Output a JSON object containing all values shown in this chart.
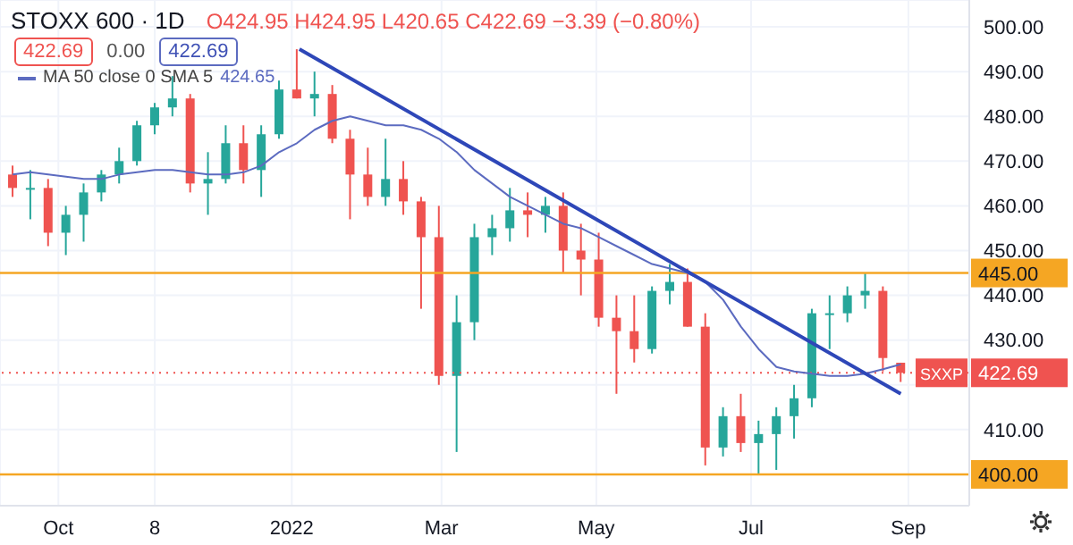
{
  "chart_data": {
    "type": "candlestick",
    "title": "STOXX 600 · 1D",
    "annotations": [
      "422.69",
      "0.00",
      "422.69",
      "424.65",
      "O424.95 H424.95 L420.65 C422.69 −3.39 (−0.80%)"
    ],
    "x": [
      "2021-09-13",
      "2021-09-20",
      "2021-09-27",
      "2021-10-04",
      "2021-10-11",
      "2021-10-18",
      "2021-10-25",
      "2021-11-01",
      "2021-11-08",
      "2021-11-15",
      "2021-11-22",
      "2021-11-29",
      "2021-12-06",
      "2021-12-13",
      "2021-12-20",
      "2021-12-27",
      "2022-01-03",
      "2022-01-10",
      "2022-01-17",
      "2022-01-24",
      "2022-01-31",
      "2022-02-07",
      "2022-02-14",
      "2022-02-21",
      "2022-02-28",
      "2022-03-07",
      "2022-03-14",
      "2022-03-21",
      "2022-03-28",
      "2022-04-04",
      "2022-04-11",
      "2022-04-18",
      "2022-04-25",
      "2022-05-02",
      "2022-05-09",
      "2022-05-16",
      "2022-05-23",
      "2022-05-30",
      "2022-06-06",
      "2022-06-13",
      "2022-06-20",
      "2022-06-27",
      "2022-07-04",
      "2022-07-11",
      "2022-07-18",
      "2022-07-25",
      "2022-08-01",
      "2022-08-08",
      "2022-08-15",
      "2022-08-22",
      "2022-08-29"
    ],
    "ohlc": [
      [
        467,
        469,
        462,
        464
      ],
      [
        464,
        468,
        457,
        464
      ],
      [
        464,
        466,
        451,
        454
      ],
      [
        454,
        460,
        449,
        458
      ],
      [
        458,
        465,
        452,
        463
      ],
      [
        463,
        468,
        461,
        467
      ],
      [
        467,
        473,
        465,
        470
      ],
      [
        470,
        479,
        469,
        478
      ],
      [
        478,
        483,
        476,
        482
      ],
      [
        482,
        489,
        480,
        484
      ],
      [
        484,
        485,
        463,
        465
      ],
      [
        465,
        472,
        458,
        466
      ],
      [
        466,
        478,
        465,
        474
      ],
      [
        474,
        478,
        465,
        468
      ],
      [
        468,
        478,
        462,
        476
      ],
      [
        476,
        488,
        475,
        486
      ],
      [
        486,
        495,
        484,
        484
      ],
      [
        484,
        490,
        480,
        485
      ],
      [
        485,
        487,
        474,
        475
      ],
      [
        475,
        477,
        457,
        467
      ],
      [
        467,
        473,
        460,
        462
      ],
      [
        462,
        475,
        460,
        466
      ],
      [
        466,
        470,
        458,
        461
      ],
      [
        461,
        462,
        437,
        453
      ],
      [
        453,
        460,
        420,
        422
      ],
      [
        422,
        440,
        405,
        434
      ],
      [
        434,
        456,
        430,
        453
      ],
      [
        453,
        458,
        449,
        455
      ],
      [
        455,
        464,
        452,
        459
      ],
      [
        459,
        463,
        453,
        458
      ],
      [
        458,
        462,
        454,
        460
      ],
      [
        460,
        463,
        445,
        450
      ],
      [
        450,
        456,
        440,
        448
      ],
      [
        448,
        454,
        433,
        435
      ],
      [
        435,
        440,
        418,
        432
      ],
      [
        432,
        440,
        425,
        428
      ],
      [
        428,
        442,
        427,
        441
      ],
      [
        441,
        447,
        438,
        443
      ],
      [
        443,
        446,
        433,
        433
      ],
      [
        433,
        436,
        402,
        406
      ],
      [
        406,
        415,
        404,
        413
      ],
      [
        413,
        418,
        405,
        407
      ],
      [
        407,
        412,
        400,
        409
      ],
      [
        409,
        415,
        401,
        413
      ],
      [
        413,
        420,
        408,
        417
      ],
      [
        417,
        437,
        415,
        436
      ],
      [
        436,
        440,
        428,
        436
      ],
      [
        436,
        442,
        434,
        440
      ],
      [
        440,
        445,
        437,
        441
      ],
      [
        441,
        442,
        423,
        426
      ],
      [
        424.95,
        424.95,
        420.65,
        422.69
      ]
    ],
    "series": [
      {
        "type": "line",
        "name": "MA 50 close 0 SMA 5",
        "color": "#5c6bc0",
        "values": [
          467,
          467.5,
          467,
          466.5,
          466,
          466,
          467,
          467.5,
          468,
          468,
          467.5,
          467,
          467,
          467.5,
          469,
          472,
          474,
          477,
          479,
          480,
          479,
          478,
          478,
          477,
          475,
          472,
          468,
          465,
          462,
          460,
          458,
          456,
          455,
          453,
          451,
          449,
          447,
          446,
          445,
          443,
          439,
          433,
          428,
          424,
          423,
          422.5,
          422,
          422,
          422.5,
          423.5,
          424.6
        ]
      },
      {
        "type": "line",
        "color": "#2e47b8",
        "x": [
          "2022-01-04",
          "2022-08-29"
        ],
        "values": [
          495,
          418
        ]
      }
    ],
    "ylim": [
      393,
      506
    ],
    "yticks": [
      {
        "value": 400,
        "label": null
      },
      {
        "value": 410,
        "label": "410.00"
      },
      {
        "value": 420,
        "label": null
      },
      {
        "value": 430,
        "label": "430.00"
      },
      {
        "value": 440,
        "label": "440.00"
      },
      {
        "value": 450,
        "label": "450.00"
      },
      {
        "value": 460,
        "label": "460.00"
      },
      {
        "value": 470,
        "label": "470.00"
      },
      {
        "value": 480,
        "label": "480.00"
      },
      {
        "value": 490,
        "label": "490.00"
      },
      {
        "value": 500,
        "label": "500.00"
      }
    ],
    "xlim": [
      "2021-09-08",
      "2022-09-25"
    ],
    "xticks": [
      {
        "value": "2021-10-01",
        "label": "Oct"
      },
      {
        "value": "2021-11-08",
        "label": "8"
      },
      {
        "value": "2022-01-01",
        "label": "2022"
      },
      {
        "value": "2022-03-01",
        "label": "Mar"
      },
      {
        "value": "2022-05-01",
        "label": "May"
      },
      {
        "value": "2022-07-01",
        "label": "Jul"
      },
      {
        "value": "2022-09-01",
        "label": "Sep"
      }
    ],
    "ref_lines": [
      {
        "axis": "y",
        "value": 445,
        "label": "445.00",
        "color": "#f5a623"
      },
      {
        "axis": "y",
        "value": 400,
        "label": "400.00",
        "color": "#f5a623"
      },
      {
        "axis": "y",
        "value": 422.69,
        "label": "SXXP",
        "color": "#ef5350",
        "line_style": "dotted"
      }
    ],
    "grid": true,
    "legend": "top left"
  }
}
